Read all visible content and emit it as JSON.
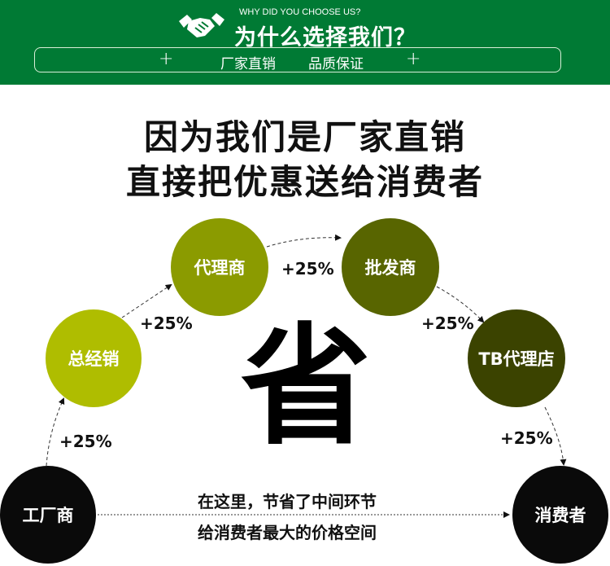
{
  "header": {
    "subtitle_en": "WHY DID YOU CHOOSE US?",
    "title": "为什么选择我们？",
    "tagline_left": "厂家直销",
    "tagline_right": "品质保证",
    "plus": "+"
  },
  "headline": {
    "line1": "因为我们是厂家直销",
    "line2": "直接把优惠送给消费者"
  },
  "chain": {
    "nodes": [
      {
        "label": "工厂商",
        "color": "#0a0a0a"
      },
      {
        "label": "总经销",
        "color": "#afbd00"
      },
      {
        "label": "代理商",
        "color": "#8b9b00"
      },
      {
        "label": "批发商",
        "color": "#586500"
      },
      {
        "label": "TB代理店",
        "color": "#3b4300"
      },
      {
        "label": "消费者",
        "color": "#0a0a0a"
      }
    ],
    "markup": "+25%"
  },
  "center_char": "省",
  "message": {
    "line1": "在这里，节省了中间环节",
    "line2": "给消费者最大的价格空间"
  },
  "colors": {
    "header_green": "#007a34"
  }
}
